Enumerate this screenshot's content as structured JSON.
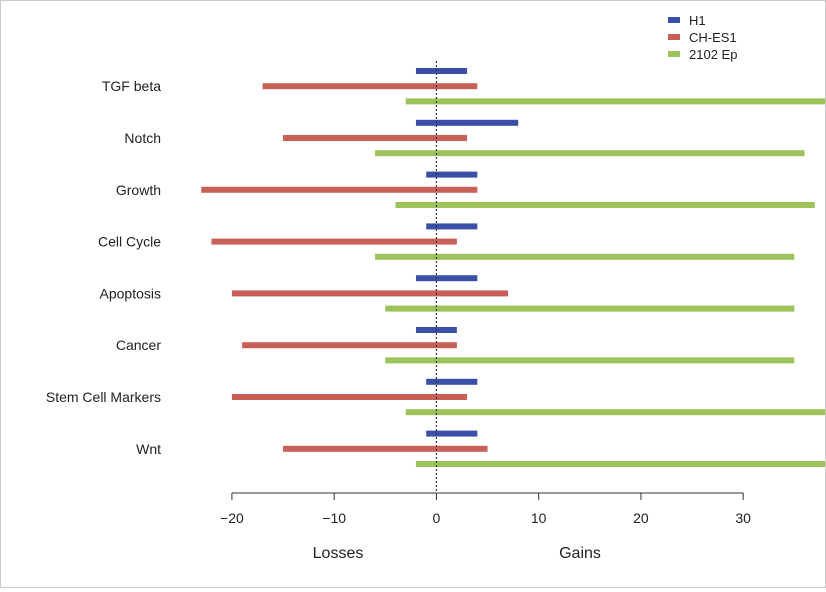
{
  "chart_data": {
    "type": "bar",
    "orientation": "horizontal",
    "categories": [
      "TGF beta",
      "Notch",
      "Growth",
      "Cell Cycle",
      "Apoptosis",
      "Cancer",
      "Stem Cell Markers",
      "Wnt"
    ],
    "series": [
      {
        "name": "H1",
        "color": "#3a50a8",
        "ranges": [
          [
            -2,
            3
          ],
          [
            -2,
            8
          ],
          [
            -1,
            4
          ],
          [
            -1,
            4
          ],
          [
            -2,
            4
          ],
          [
            -2,
            2
          ],
          [
            -1,
            4
          ],
          [
            -1,
            4
          ]
        ]
      },
      {
        "name": "CH-ES1",
        "color": "#c96058",
        "ranges": [
          [
            -17,
            4
          ],
          [
            -15,
            3
          ],
          [
            -23,
            4
          ],
          [
            -22,
            2
          ],
          [
            -20,
            7
          ],
          [
            -19,
            2
          ],
          [
            -20,
            3
          ],
          [
            -15,
            5
          ]
        ]
      },
      {
        "name": "2102 Ep",
        "color": "#9cc35a",
        "ranges": [
          [
            -3,
            38
          ],
          [
            -6,
            36
          ],
          [
            -4,
            37
          ],
          [
            -6,
            35
          ],
          [
            -5,
            35
          ],
          [
            -5,
            35
          ],
          [
            -3,
            38
          ],
          [
            -2,
            38
          ]
        ]
      }
    ],
    "xticks": [
      -20,
      -10,
      0,
      10,
      20,
      30
    ],
    "xtick_labels": [
      "−20",
      "−10",
      "0",
      "10",
      "20",
      "30"
    ],
    "xlim": [
      -24,
      38
    ],
    "x_sublabels": [
      "Losses",
      "Gains"
    ],
    "reference_line": 0,
    "legend": "top-right",
    "grid": false
  }
}
